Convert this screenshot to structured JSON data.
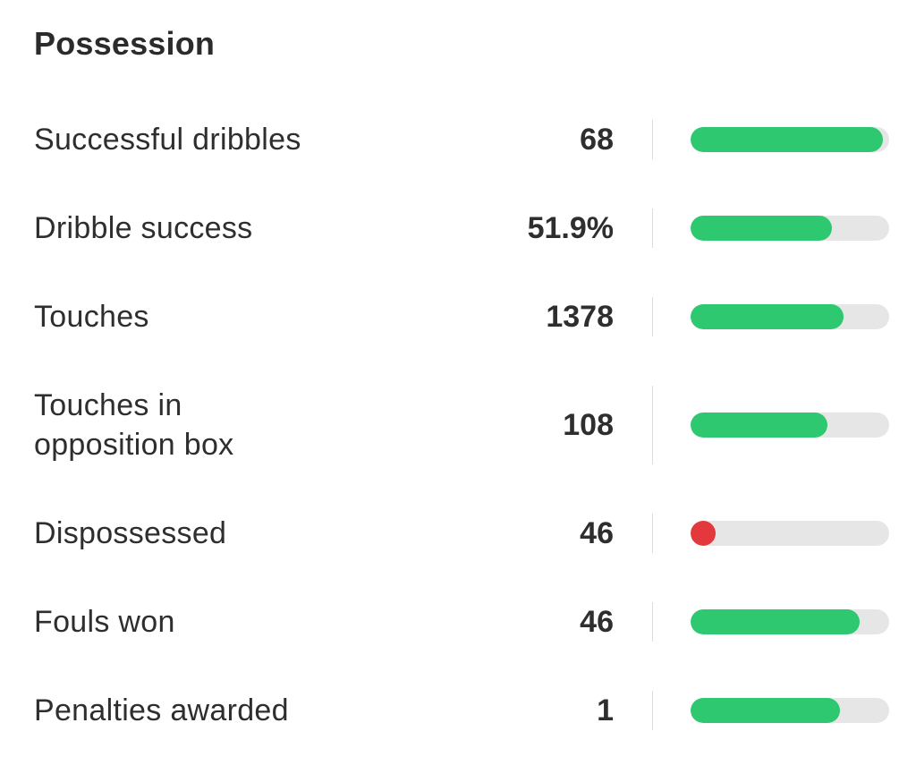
{
  "section": {
    "title": "Possession"
  },
  "colors": {
    "good": "#2ec870",
    "bad": "#e4393c",
    "track": "#e6e6e6"
  },
  "stats": [
    {
      "label": "Successful dribbles",
      "value": "68",
      "level": 0.97,
      "status": "good"
    },
    {
      "label": "Dribble success",
      "value": "51.9%",
      "level": 0.71,
      "status": "good"
    },
    {
      "label": "Touches",
      "value": "1378",
      "level": 0.77,
      "status": "good"
    },
    {
      "label": "Touches in\nopposition box",
      "value": "108",
      "level": 0.69,
      "status": "good"
    },
    {
      "label": "Dispossessed",
      "value": "46",
      "level": 0.0,
      "status": "bad"
    },
    {
      "label": "Fouls won",
      "value": "46",
      "level": 0.85,
      "status": "good"
    },
    {
      "label": "Penalties awarded",
      "value": "1",
      "level": 0.75,
      "status": "good"
    }
  ]
}
